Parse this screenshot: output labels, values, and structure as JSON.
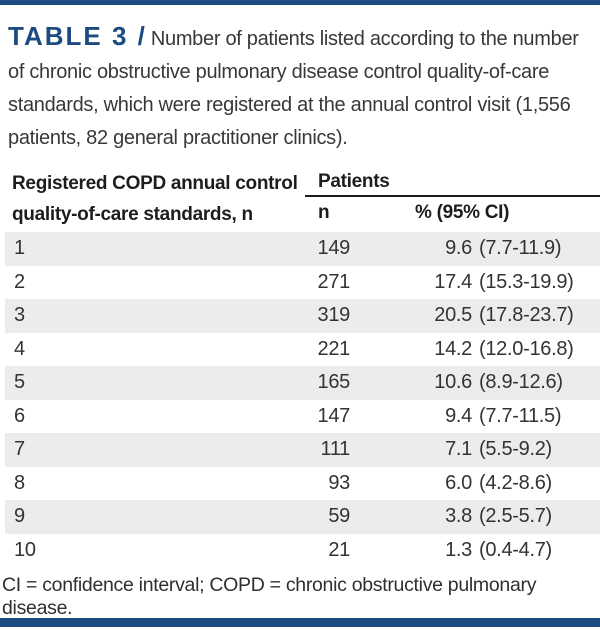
{
  "header": {
    "label": "TABLE 3 /",
    "caption": "Number of patients listed according to the number of chronic obstructive pulmonary disease control quality-of-care standards, which were registered at the annual control visit (1,556 patients, 82 general practitioner clinics)."
  },
  "table": {
    "col_standards_header_line1": "Registered COPD annual control",
    "col_standards_header_line2": "quality-of-care standards, n",
    "group_header": "Patients",
    "col_n_header": "n",
    "col_pct_header": "% (95% CI)",
    "rows": [
      {
        "standards": "1",
        "n": "149",
        "pct": "9.6",
        "ci": "(7.7-11.9)"
      },
      {
        "standards": "2",
        "n": "271",
        "pct": "17.4",
        "ci": "(15.3-19.9)"
      },
      {
        "standards": "3",
        "n": "319",
        "pct": "20.5",
        "ci": "(17.8-23.7)"
      },
      {
        "standards": "4",
        "n": "221",
        "pct": "14.2",
        "ci": "(12.0-16.8)"
      },
      {
        "standards": "5",
        "n": "165",
        "pct": "10.6",
        "ci": "(8.9-12.6)"
      },
      {
        "standards": "6",
        "n": "147",
        "pct": "9.4",
        "ci": "(7.7-11.5)"
      },
      {
        "standards": "7",
        "n": "111",
        "pct": "7.1",
        "ci": "(5.5-9.2)"
      },
      {
        "standards": "8",
        "n": "93",
        "pct": "6.0",
        "ci": "(4.2-8.6)"
      },
      {
        "standards": "9",
        "n": "59",
        "pct": "3.8",
        "ci": "(2.5-5.7)"
      },
      {
        "standards": "10",
        "n": "21",
        "pct": "1.3",
        "ci": "(0.4-4.7)"
      }
    ],
    "footnote": "CI = confidence interval; COPD = chronic obstructive pulmonary disease."
  },
  "colors": {
    "accent_navy": "#1b4b80",
    "stripe_gray": "#ececec",
    "text_dark": "#2e2e2e"
  }
}
